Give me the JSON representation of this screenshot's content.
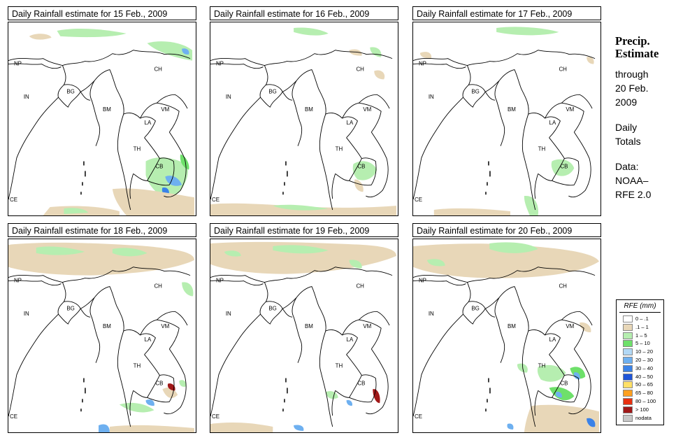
{
  "panels": [
    {
      "title": "Daily Rainfall estimate for  15 Feb., 2009"
    },
    {
      "title": "Daily Rainfall estimate for  16 Feb., 2009"
    },
    {
      "title": "Daily Rainfall estimate for  17 Feb., 2009"
    },
    {
      "title": "Daily Rainfall estimate for  18 Feb., 2009"
    },
    {
      "title": "Daily Rainfall estimate for  19 Feb., 2009"
    },
    {
      "title": "Daily Rainfall estimate for  20 Feb., 2009"
    }
  ],
  "country_labels": {
    "np": "NP",
    "ch": "CH",
    "in": "IN",
    "bg": "BG",
    "bm": "BM",
    "vm": "VM",
    "la": "LA",
    "th": "TH",
    "cb": "CB",
    "ce": "CE"
  },
  "side": {
    "title_line1": "Precip.",
    "title_line2": "Estimate",
    "through": "through",
    "date_line1": "20 Feb.",
    "date_line2": "2009",
    "daily": "Daily",
    "totals": "Totals",
    "data_label": "Data:",
    "source1": "NOAA–",
    "source2": "RFE 2.0"
  },
  "legend": {
    "title": "RFE (mm)",
    "items": [
      {
        "label": "0 – .1",
        "color": "#ffffff"
      },
      {
        "label": ".1 – 1",
        "color": "#e8d7b8"
      },
      {
        "label": "1 – 5",
        "color": "#b6eeb0"
      },
      {
        "label": "5 – 10",
        "color": "#6ee06a"
      },
      {
        "label": "10 – 20",
        "color": "#b2d8f5"
      },
      {
        "label": "20 – 30",
        "color": "#6eb0f0"
      },
      {
        "label": "30 – 40",
        "color": "#3a82e8"
      },
      {
        "label": "40 – 50",
        "color": "#1f55d8"
      },
      {
        "label": "50 – 65",
        "color": "#ffe066"
      },
      {
        "label": "65 – 80",
        "color": "#ffa020"
      },
      {
        "label": "80 – 100",
        "color": "#e83010"
      },
      {
        "label": "> 100",
        "color": "#a01818"
      },
      {
        "label": "nodata",
        "color": "#c8c8c8"
      }
    ]
  }
}
